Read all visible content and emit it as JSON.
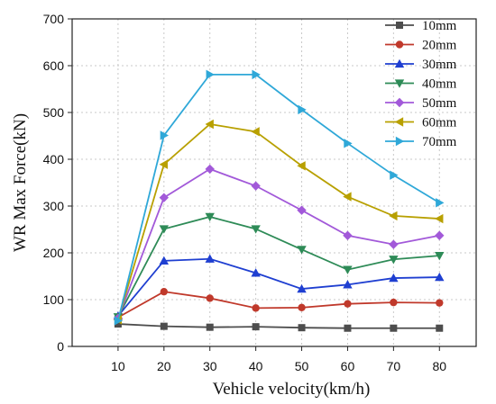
{
  "chart_data": {
    "type": "line",
    "title": "",
    "xlabel": "Vehicle velocity(km/h)",
    "ylabel": "WR Max Force(kN)",
    "xlim": [
      0,
      88
    ],
    "ylim": [
      0,
      700
    ],
    "x_ticks": [
      10,
      20,
      30,
      40,
      50,
      60,
      70,
      80
    ],
    "y_ticks": [
      0,
      100,
      200,
      300,
      400,
      500,
      600,
      700
    ],
    "grid": true,
    "legend_position": "top-right",
    "x": [
      10,
      20,
      30,
      40,
      50,
      60,
      70,
      80
    ],
    "series": [
      {
        "name": "10mm",
        "color": "#4d4d4d",
        "marker": "square",
        "values": [
          48,
          43,
          41,
          42,
          40,
          39,
          39,
          39
        ]
      },
      {
        "name": "20mm",
        "color": "#c0392b",
        "marker": "circle",
        "values": [
          62,
          117,
          103,
          82,
          83,
          91,
          94,
          93
        ]
      },
      {
        "name": "30mm",
        "color": "#1f3fd1",
        "marker": "triangle-up",
        "values": [
          65,
          183,
          187,
          157,
          123,
          132,
          146,
          148
        ]
      },
      {
        "name": "40mm",
        "color": "#2e8b57",
        "marker": "triangle-down",
        "values": [
          63,
          251,
          277,
          251,
          207,
          164,
          186,
          194
        ]
      },
      {
        "name": "50mm",
        "color": "#a259d9",
        "marker": "diamond",
        "values": [
          60,
          318,
          379,
          343,
          291,
          237,
          218,
          237
        ]
      },
      {
        "name": "60mm",
        "color": "#b8a000",
        "marker": "triangle-left",
        "values": [
          57,
          389,
          475,
          459,
          386,
          320,
          279,
          273
        ]
      },
      {
        "name": "70mm",
        "color": "#2fa8d8",
        "marker": "triangle-right",
        "values": [
          55,
          451,
          581,
          581,
          506,
          434,
          366,
          307
        ]
      }
    ]
  }
}
